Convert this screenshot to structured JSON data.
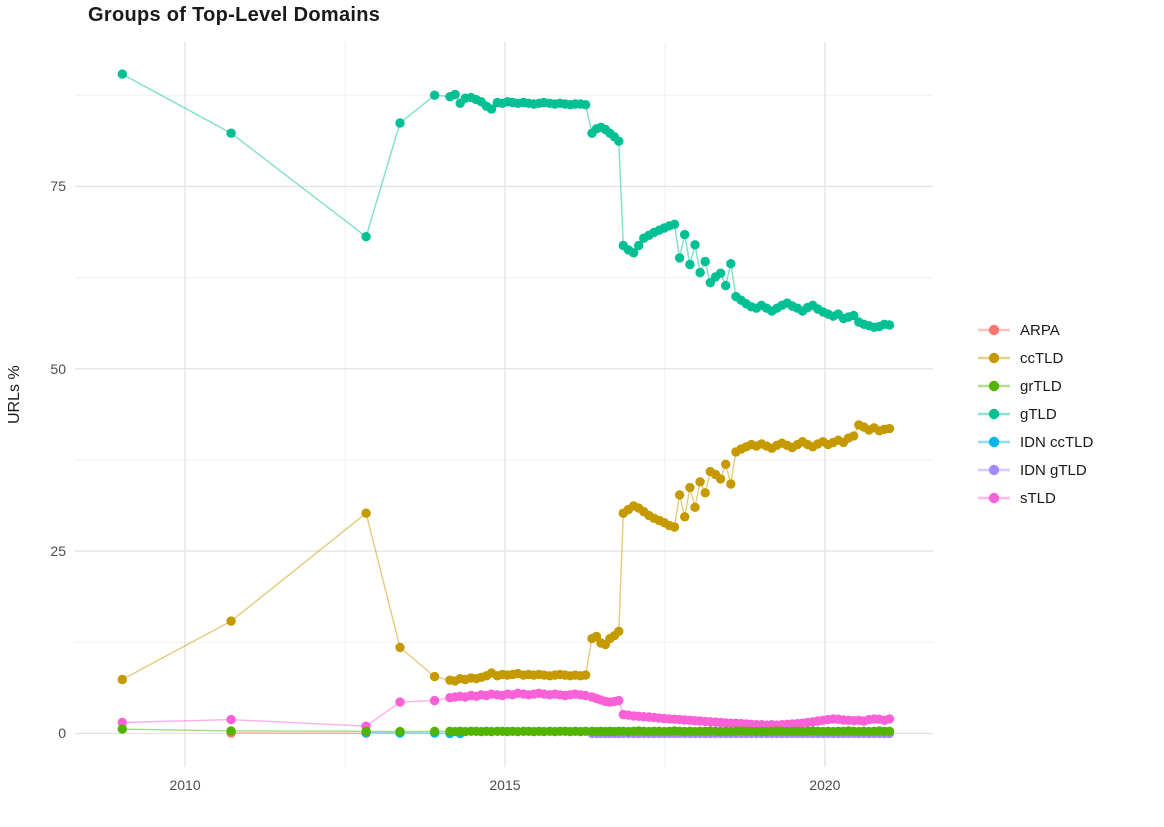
{
  "chart_data": {
    "type": "scatter-line",
    "title": "Groups of Top-Level Domains",
    "xlabel": "",
    "ylabel": "URLs %",
    "grid": "on",
    "legend_position": "right",
    "xlim": [
      2008.28,
      2021.69
    ],
    "ylim": [
      -4.6,
      94.8
    ],
    "xticks": {
      "values": [
        2010,
        2015,
        2020
      ],
      "labels": [
        "2010",
        "2015",
        "2020"
      ]
    },
    "yticks": {
      "values": [
        0,
        25,
        50,
        75
      ],
      "labels": [
        "0",
        "25",
        "50",
        "75"
      ]
    },
    "xticks_minor": [
      2012.5,
      2017.5
    ],
    "yticks_minor": [
      12.5,
      37.5,
      62.5,
      87.5
    ],
    "x": [
      2009.02,
      2010.72,
      2012.83,
      2013.36,
      2013.9,
      2014.14,
      2014.22,
      2014.3,
      2014.38,
      2014.47,
      2014.55,
      2014.63,
      2014.71,
      2014.79,
      2014.88,
      2014.96,
      2015.04,
      2015.12,
      2015.2,
      2015.29,
      2015.37,
      2015.45,
      2015.53,
      2015.61,
      2015.7,
      2015.78,
      2015.86,
      2015.94,
      2016.02,
      2016.1,
      2016.18,
      2016.26,
      2016.36,
      2016.43,
      2016.5,
      2016.57,
      2016.64,
      2016.71,
      2016.78,
      2016.85,
      2016.93,
      2017.01,
      2017.09,
      2017.17,
      2017.25,
      2017.33,
      2017.41,
      2017.49,
      2017.57,
      2017.65,
      2017.73,
      2017.81,
      2017.89,
      2017.97,
      2018.05,
      2018.13,
      2018.21,
      2018.29,
      2018.37,
      2018.45,
      2018.53,
      2018.61,
      2018.69,
      2018.77,
      2018.85,
      2018.93,
      2019.01,
      2019.09,
      2019.17,
      2019.25,
      2019.33,
      2019.41,
      2019.49,
      2019.57,
      2019.65,
      2019.73,
      2019.81,
      2019.89,
      2019.97,
      2020.05,
      2020.13,
      2020.21,
      2020.29,
      2020.37,
      2020.45,
      2020.53,
      2020.61,
      2020.69,
      2020.77,
      2020.85,
      2020.93,
      2021.01
    ],
    "series": [
      {
        "name": "ARPA",
        "color": "#F8766D",
        "x": [
          2010.72,
          2012.83
        ],
        "y": [
          0.05,
          0.02
        ]
      },
      {
        "name": "ccTLD",
        "color": "#C49A00",
        "y": [
          7.4,
          15.4,
          30.2,
          11.8,
          7.8,
          7.3,
          7.2,
          7.5,
          7.4,
          7.6,
          7.5,
          7.7,
          7.9,
          8.3,
          7.9,
          8.1,
          8,
          8.1,
          8.2,
          8,
          8.1,
          8,
          8.1,
          8,
          7.9,
          8,
          8.1,
          8,
          7.9,
          8,
          7.9,
          8,
          13,
          13.3,
          12.4,
          12.2,
          13,
          13.4,
          14,
          30.2,
          30.7,
          31.2,
          30.9,
          30.4,
          29.9,
          29.5,
          29.2,
          28.9,
          28.5,
          28.3,
          32.7,
          29.7,
          33.7,
          31,
          34.5,
          33,
          35.9,
          35.5,
          34.9,
          36.9,
          34.2,
          38.6,
          39,
          39.3,
          39.6,
          39.4,
          39.7,
          39.4,
          39.1,
          39.5,
          39.8,
          39.5,
          39.2,
          39.6,
          40,
          39.6,
          39.3,
          39.7,
          40,
          39.6,
          39.9,
          40.2,
          39.9,
          40.5,
          40.8,
          42.3,
          42,
          41.6,
          41.9,
          41.5,
          41.7,
          41.8
        ]
      },
      {
        "name": "grTLD",
        "color": "#53B400",
        "y": [
          0.6,
          0.35,
          0.3,
          0.25,
          0.3,
          0.3,
          0.25,
          0.3,
          0.25,
          0.3,
          0.3,
          0.25,
          0.3,
          0.25,
          0.3,
          0.3,
          0.25,
          0.3,
          0.25,
          0.3,
          0.3,
          0.25,
          0.3,
          0.25,
          0.3,
          0.25,
          0.3,
          0.3,
          0.25,
          0.3,
          0.25,
          0.3,
          0.3,
          0.25,
          0.3,
          0.25,
          0.3,
          0.25,
          0.3,
          0.3,
          0.25,
          0.3,
          0.35,
          0.3,
          0.25,
          0.3,
          0.3,
          0.25,
          0.3,
          0.35,
          0.3,
          0.25,
          0.3,
          0.25,
          0.3,
          0.3,
          0.35,
          0.3,
          0.25,
          0.3,
          0.25,
          0.3,
          0.35,
          0.3,
          0.3,
          0.25,
          0.3,
          0.25,
          0.3,
          0.35,
          0.3,
          0.25,
          0.3,
          0.3,
          0.25,
          0.3,
          0.35,
          0.3,
          0.25,
          0.3,
          0.25,
          0.3,
          0.3,
          0.35,
          0.3,
          0.25,
          0.3,
          0.25,
          0.3,
          0.35,
          0.3,
          0.3
        ]
      },
      {
        "name": "gTLD",
        "color": "#00C094",
        "y": [
          90.4,
          82.3,
          68.1,
          83.7,
          87.5,
          87.3,
          87.6,
          86.4,
          87.1,
          87.2,
          86.9,
          86.6,
          86,
          85.6,
          86.5,
          86.4,
          86.6,
          86.5,
          86.4,
          86.5,
          86.4,
          86.3,
          86.4,
          86.5,
          86.4,
          86.3,
          86.4,
          86.3,
          86.2,
          86.3,
          86.3,
          86.2,
          82.3,
          82.9,
          83.1,
          82.8,
          82.3,
          81.8,
          81.2,
          66.9,
          66.3,
          65.9,
          66.9,
          67.9,
          68.3,
          68.7,
          69,
          69.3,
          69.6,
          69.8,
          65.2,
          68.4,
          64.3,
          67,
          63.2,
          64.7,
          61.8,
          62.6,
          63.1,
          61.4,
          64.4,
          59.9,
          59.4,
          58.9,
          58.5,
          58.3,
          58.7,
          58.3,
          57.9,
          58.3,
          58.7,
          59,
          58.6,
          58.3,
          57.9,
          58.4,
          58.7,
          58.2,
          57.8,
          57.5,
          57.2,
          57.5,
          56.9,
          57.1,
          57.3,
          56.4,
          56.1,
          55.9,
          55.7,
          55.8,
          56.1,
          56
        ]
      },
      {
        "name": "IDN ccTLD",
        "color": "#00B6EB",
        "x": [
          2012.83,
          2013.36,
          2013.9,
          2014.14,
          2014.3
        ],
        "y": [
          0.1,
          0.05,
          0.05,
          0,
          0
        ]
      },
      {
        "name": "IDN gTLD",
        "color": "#A58AFF",
        "x": [
          2016.36,
          2016.43,
          2016.5,
          2016.57,
          2016.64,
          2016.71,
          2016.78,
          2016.85,
          2016.93,
          2017.01,
          2017.09,
          2017.17,
          2017.25,
          2017.33,
          2017.41,
          2017.49,
          2017.57,
          2017.65,
          2017.73,
          2017.81,
          2017.89,
          2017.97,
          2018.05,
          2018.13,
          2018.21,
          2018.29,
          2018.37,
          2018.45,
          2018.53,
          2018.61,
          2018.69,
          2018.77,
          2018.85,
          2018.93,
          2019.01,
          2019.09,
          2019.17,
          2019.25,
          2019.33,
          2019.41,
          2019.49,
          2019.57,
          2019.65,
          2019.73,
          2019.81,
          2019.89,
          2019.97,
          2020.05,
          2020.13,
          2020.21,
          2020.29,
          2020.37,
          2020.45,
          2020.53,
          2020.61,
          2020.69,
          2020.77,
          2020.85,
          2020.93,
          2021.01
        ],
        "y": [
          0,
          0,
          0,
          0,
          0,
          0,
          0,
          0,
          0,
          0,
          0,
          0,
          0,
          0,
          0,
          0,
          0,
          0,
          0,
          0,
          0,
          0,
          0,
          0,
          0,
          0,
          0,
          0,
          0,
          0,
          0,
          0,
          0,
          0,
          0,
          0,
          0,
          0,
          0,
          0,
          0,
          0,
          0,
          0,
          0,
          0,
          0,
          0,
          0,
          0,
          0,
          0,
          0,
          0,
          0,
          0,
          0,
          0,
          0,
          0
        ]
      },
      {
        "name": "sTLD",
        "color": "#FB61D7",
        "y": [
          1.5,
          1.9,
          1,
          4.3,
          4.5,
          4.9,
          5,
          5.1,
          5,
          5.2,
          5.1,
          5.3,
          5.2,
          5.4,
          5.3,
          5.2,
          5.4,
          5.3,
          5.5,
          5.4,
          5.3,
          5.4,
          5.5,
          5.4,
          5.3,
          5.4,
          5.3,
          5.2,
          5.3,
          5.4,
          5.3,
          5.2,
          5,
          4.8,
          4.6,
          4.4,
          4.3,
          4.4,
          4.5,
          2.6,
          2.5,
          2.4,
          2.35,
          2.3,
          2.25,
          2.2,
          2.1,
          2.05,
          2,
          1.95,
          1.9,
          1.85,
          1.8,
          1.75,
          1.7,
          1.65,
          1.6,
          1.55,
          1.5,
          1.45,
          1.4,
          1.4,
          1.35,
          1.3,
          1.25,
          1.2,
          1.2,
          1.15,
          1.2,
          1.15,
          1.2,
          1.25,
          1.3,
          1.35,
          1.4,
          1.5,
          1.6,
          1.7,
          1.8,
          1.9,
          2,
          1.95,
          1.85,
          1.8,
          1.75,
          1.8,
          1.7,
          1.9,
          2,
          1.95,
          1.8,
          2
        ]
      }
    ]
  }
}
